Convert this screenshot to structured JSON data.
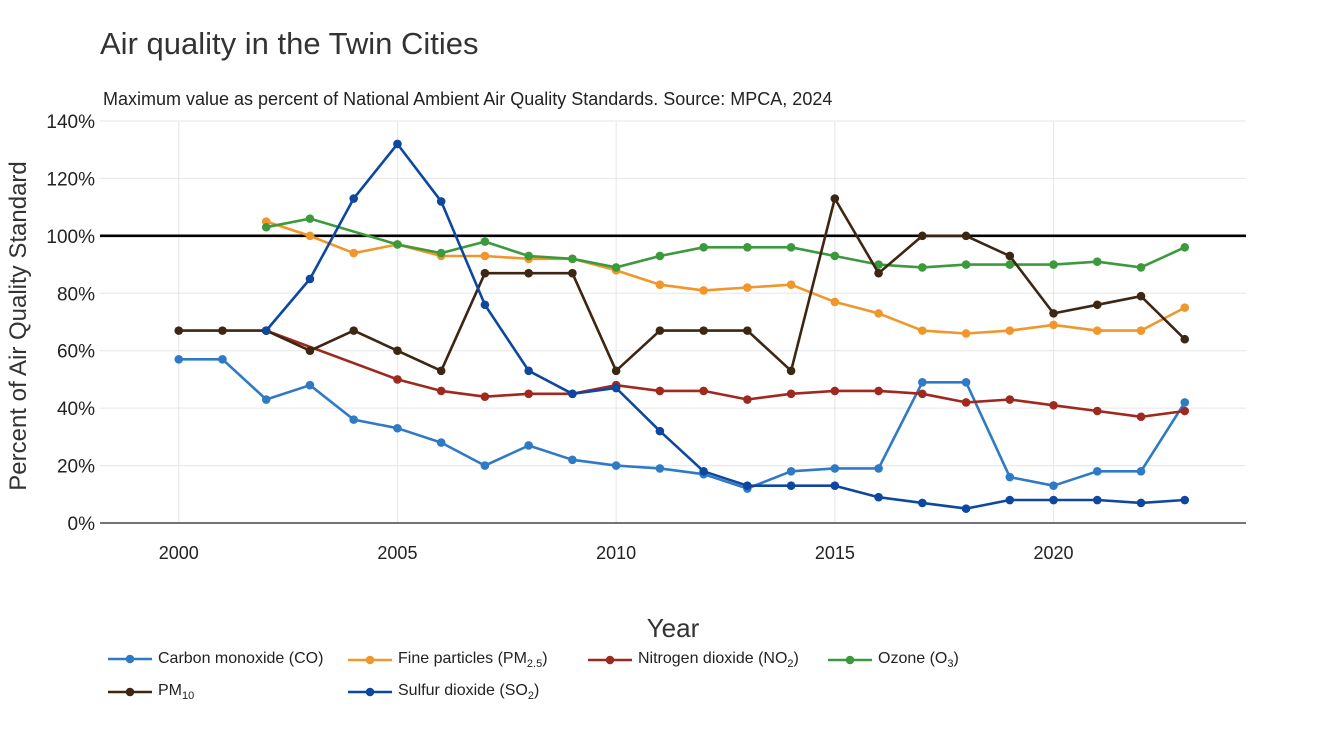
{
  "chart_data": {
    "type": "line",
    "title": "Air quality in the Twin Cities",
    "subtitle": "Maximum value as percent of National Ambient Air Quality Standards. Source: MPCA, 2024",
    "xlabel": "Year",
    "ylabel": "Percent of Air Quality Standard",
    "xlim": [
      1998.2,
      2024.4
    ],
    "ylim": [
      0,
      140
    ],
    "xticks": [
      2000,
      2005,
      2010,
      2015,
      2020
    ],
    "xtick_labels": [
      "2000",
      "2005",
      "2010",
      "2015",
      "2020"
    ],
    "yticks": [
      0,
      20,
      40,
      60,
      80,
      100,
      120,
      140
    ],
    "ytick_labels": [
      "0%",
      "20%",
      "40%",
      "60%",
      "80%",
      "100%",
      "120%",
      "140%"
    ],
    "reference_line": 100,
    "grid": true,
    "legend_position": "bottom",
    "series": [
      {
        "name": "Carbon monoxide (CO)",
        "sub": "",
        "tail": "",
        "color": "#2f7ac4",
        "x": [
          2000,
          2001,
          2002,
          2003,
          2004,
          2005,
          2006,
          2007,
          2008,
          2009,
          2010,
          2011,
          2012,
          2013,
          2014,
          2015,
          2016,
          2017,
          2018,
          2019,
          2020,
          2021,
          2022,
          2023
        ],
        "y": [
          57,
          57,
          43,
          48,
          36,
          33,
          28,
          20,
          27,
          22,
          20,
          19,
          17,
          12,
          18,
          19,
          19,
          49,
          49,
          16,
          13,
          18,
          18,
          42
        ]
      },
      {
        "name": "Fine particles (PM",
        "sub": "2.5",
        "tail": ")",
        "color": "#f0962a",
        "x": [
          2002,
          2003,
          2004,
          2005,
          2006,
          2007,
          2008,
          2009,
          2010,
          2011,
          2012,
          2013,
          2014,
          2015,
          2016,
          2017,
          2018,
          2019,
          2020,
          2021,
          2022,
          2023
        ],
        "y": [
          105,
          100,
          94,
          97,
          93,
          93,
          92,
          92,
          88,
          83,
          81,
          82,
          83,
          77,
          73,
          67,
          66,
          67,
          69,
          67,
          67,
          75
        ]
      },
      {
        "name": "Nitrogen dioxide (NO",
        "sub": "2",
        "tail": ")",
        "color": "#a0291f",
        "x": [
          2002,
          2005,
          2006,
          2007,
          2008,
          2009,
          2010,
          2011,
          2012,
          2013,
          2014,
          2015,
          2016,
          2017,
          2018,
          2019,
          2020,
          2021,
          2022,
          2023
        ],
        "y": [
          67,
          50,
          46,
          44,
          45,
          45,
          48,
          46,
          46,
          43,
          45,
          46,
          46,
          45,
          42,
          43,
          41,
          39,
          37,
          39
        ]
      },
      {
        "name": "Ozone (O",
        "sub": "3",
        "tail": ")",
        "color": "#3c9a3c",
        "x": [
          2002,
          2003,
          2005,
          2006,
          2007,
          2008,
          2009,
          2010,
          2011,
          2012,
          2013,
          2014,
          2015,
          2016,
          2017,
          2018,
          2019,
          2020,
          2021,
          2022,
          2023
        ],
        "y": [
          103,
          106,
          97,
          94,
          98,
          93,
          92,
          89,
          93,
          96,
          96,
          96,
          93,
          90,
          89,
          90,
          90,
          90,
          91,
          89,
          96
        ]
      },
      {
        "name": "PM",
        "sub": "10",
        "tail": "",
        "color": "#3d2612",
        "x": [
          2000,
          2001,
          2002,
          2003,
          2004,
          2005,
          2006,
          2007,
          2008,
          2009,
          2010,
          2011,
          2012,
          2013,
          2014,
          2015,
          2016,
          2017,
          2018,
          2019,
          2020,
          2021,
          2022,
          2023
        ],
        "y": [
          67,
          67,
          67,
          60,
          67,
          60,
          53,
          87,
          87,
          87,
          53,
          67,
          67,
          67,
          53,
          113,
          87,
          100,
          100,
          93,
          73,
          76,
          79,
          64
        ]
      },
      {
        "name": "Sulfur dioxide (SO",
        "sub": "2",
        "tail": ")",
        "color": "#0e47a0",
        "x": [
          2002,
          2003,
          2004,
          2005,
          2006,
          2007,
          2008,
          2009,
          2010,
          2011,
          2012,
          2013,
          2014,
          2015,
          2016,
          2017,
          2018,
          2019,
          2020,
          2021,
          2022,
          2023
        ],
        "y": [
          67,
          85,
          113,
          132,
          112,
          76,
          53,
          45,
          47,
          32,
          18,
          13,
          13,
          13,
          9,
          7,
          5,
          8,
          8,
          8,
          7,
          8
        ]
      }
    ]
  }
}
